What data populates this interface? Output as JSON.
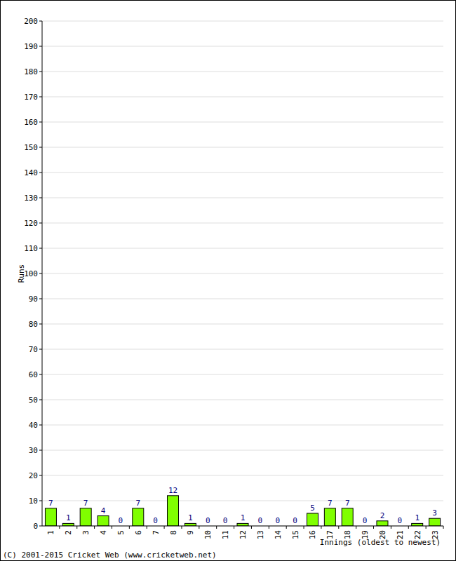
{
  "chart_data": {
    "type": "bar",
    "y_label": "Runs",
    "x_label": "Innings (oldest to newest)",
    "annotations": [
      "(C) 2001-2015 Cricket Web (www.cricketweb.net)"
    ],
    "categories": [
      "1",
      "2",
      "3",
      "4",
      "5",
      "6",
      "7",
      "8",
      "9",
      "10",
      "11",
      "12",
      "13",
      "14",
      "15",
      "16",
      "17",
      "18",
      "19",
      "20",
      "21",
      "22",
      "23"
    ],
    "values": [
      7,
      1,
      7,
      4,
      0,
      7,
      0,
      12,
      1,
      0,
      0,
      1,
      0,
      0,
      0,
      5,
      7,
      7,
      0,
      2,
      0,
      1,
      3
    ],
    "color": "#80ff00",
    "ylim": [
      0,
      200
    ],
    "yticks": [
      0,
      10,
      20,
      30,
      40,
      50,
      60,
      70,
      80,
      90,
      100,
      110,
      120,
      130,
      140,
      150,
      160,
      170,
      180,
      190,
      200
    ],
    "grid": true,
    "data_labels": true
  }
}
